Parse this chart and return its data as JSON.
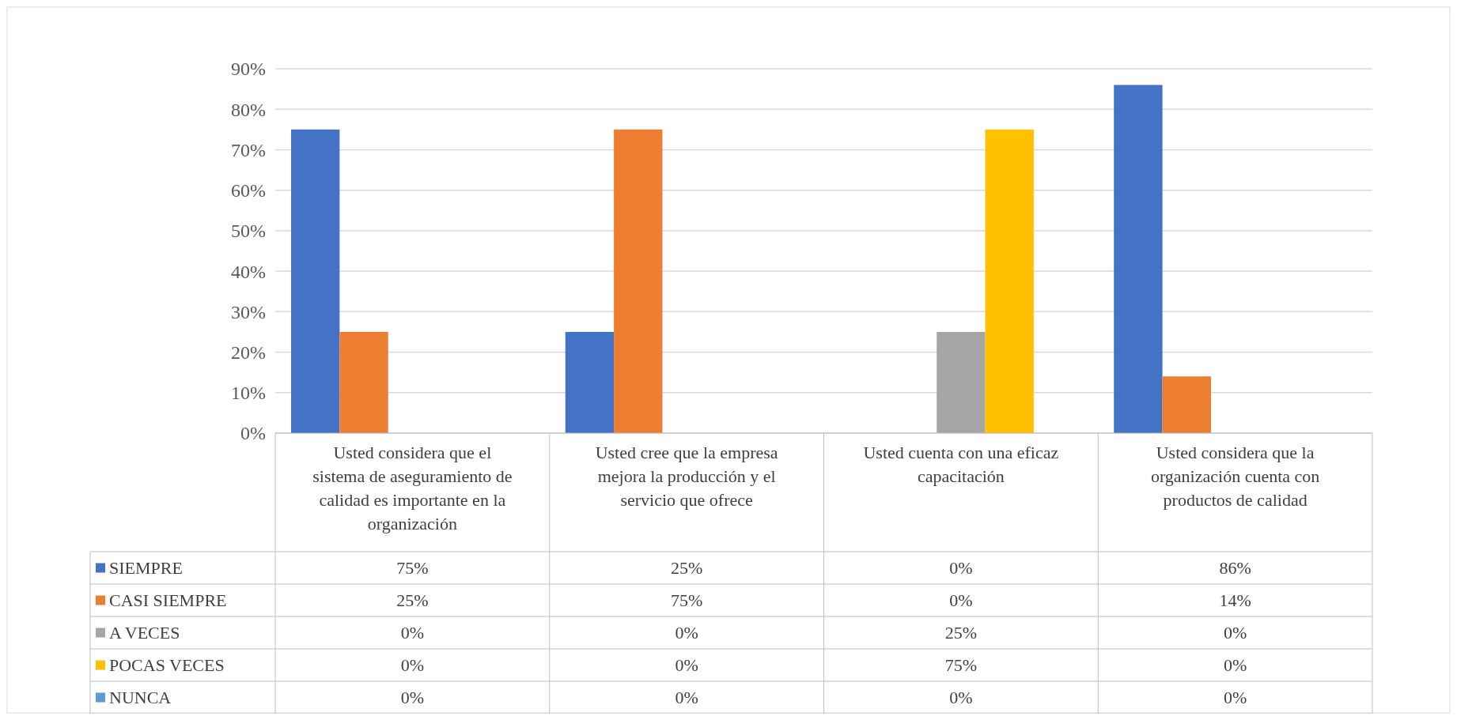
{
  "chart_data": {
    "type": "bar",
    "categories": [
      "Usted considera que el sistema de aseguramiento de calidad es importante en la organización",
      "Usted cree que la empresa mejora la producción y el servicio que ofrece",
      "Usted cuenta con una eficaz capacitación",
      "Usted considera que la organización cuenta con productos de calidad"
    ],
    "series": [
      {
        "name": "SIEMPRE",
        "color": "#4472c4",
        "values": [
          75,
          25,
          0,
          86
        ],
        "value_labels": [
          "75%",
          "25%",
          "0%",
          "86%"
        ]
      },
      {
        "name": "CASI SIEMPRE",
        "color": "#ed7d31",
        "values": [
          25,
          75,
          0,
          14
        ],
        "value_labels": [
          "25%",
          "75%",
          "0%",
          "14%"
        ]
      },
      {
        "name": "A VECES",
        "color": "#a5a5a5",
        "values": [
          0,
          0,
          25,
          0
        ],
        "value_labels": [
          "0%",
          "0%",
          "25%",
          "0%"
        ]
      },
      {
        "name": "POCAS VECES",
        "color": "#ffc000",
        "values": [
          0,
          0,
          75,
          0
        ],
        "value_labels": [
          "0%",
          "0%",
          "75%",
          "0%"
        ]
      },
      {
        "name": "NUNCA",
        "color": "#5b9bd5",
        "values": [
          0,
          0,
          0,
          0
        ],
        "value_labels": [
          "0%",
          "0%",
          "0%",
          "0%"
        ]
      }
    ],
    "ylim": [
      0,
      90
    ],
    "yticks": [
      {
        "value": 0,
        "label": "0%"
      },
      {
        "value": 10,
        "label": "10%"
      },
      {
        "value": 20,
        "label": "20%"
      },
      {
        "value": 30,
        "label": "30%"
      },
      {
        "value": 40,
        "label": "40%"
      },
      {
        "value": 50,
        "label": "50%"
      },
      {
        "value": 60,
        "label": "60%"
      },
      {
        "value": 70,
        "label": "70%"
      },
      {
        "value": 80,
        "label": "80%"
      },
      {
        "value": 90,
        "label": "90%"
      }
    ],
    "grid": "y",
    "legend": "bottom"
  }
}
